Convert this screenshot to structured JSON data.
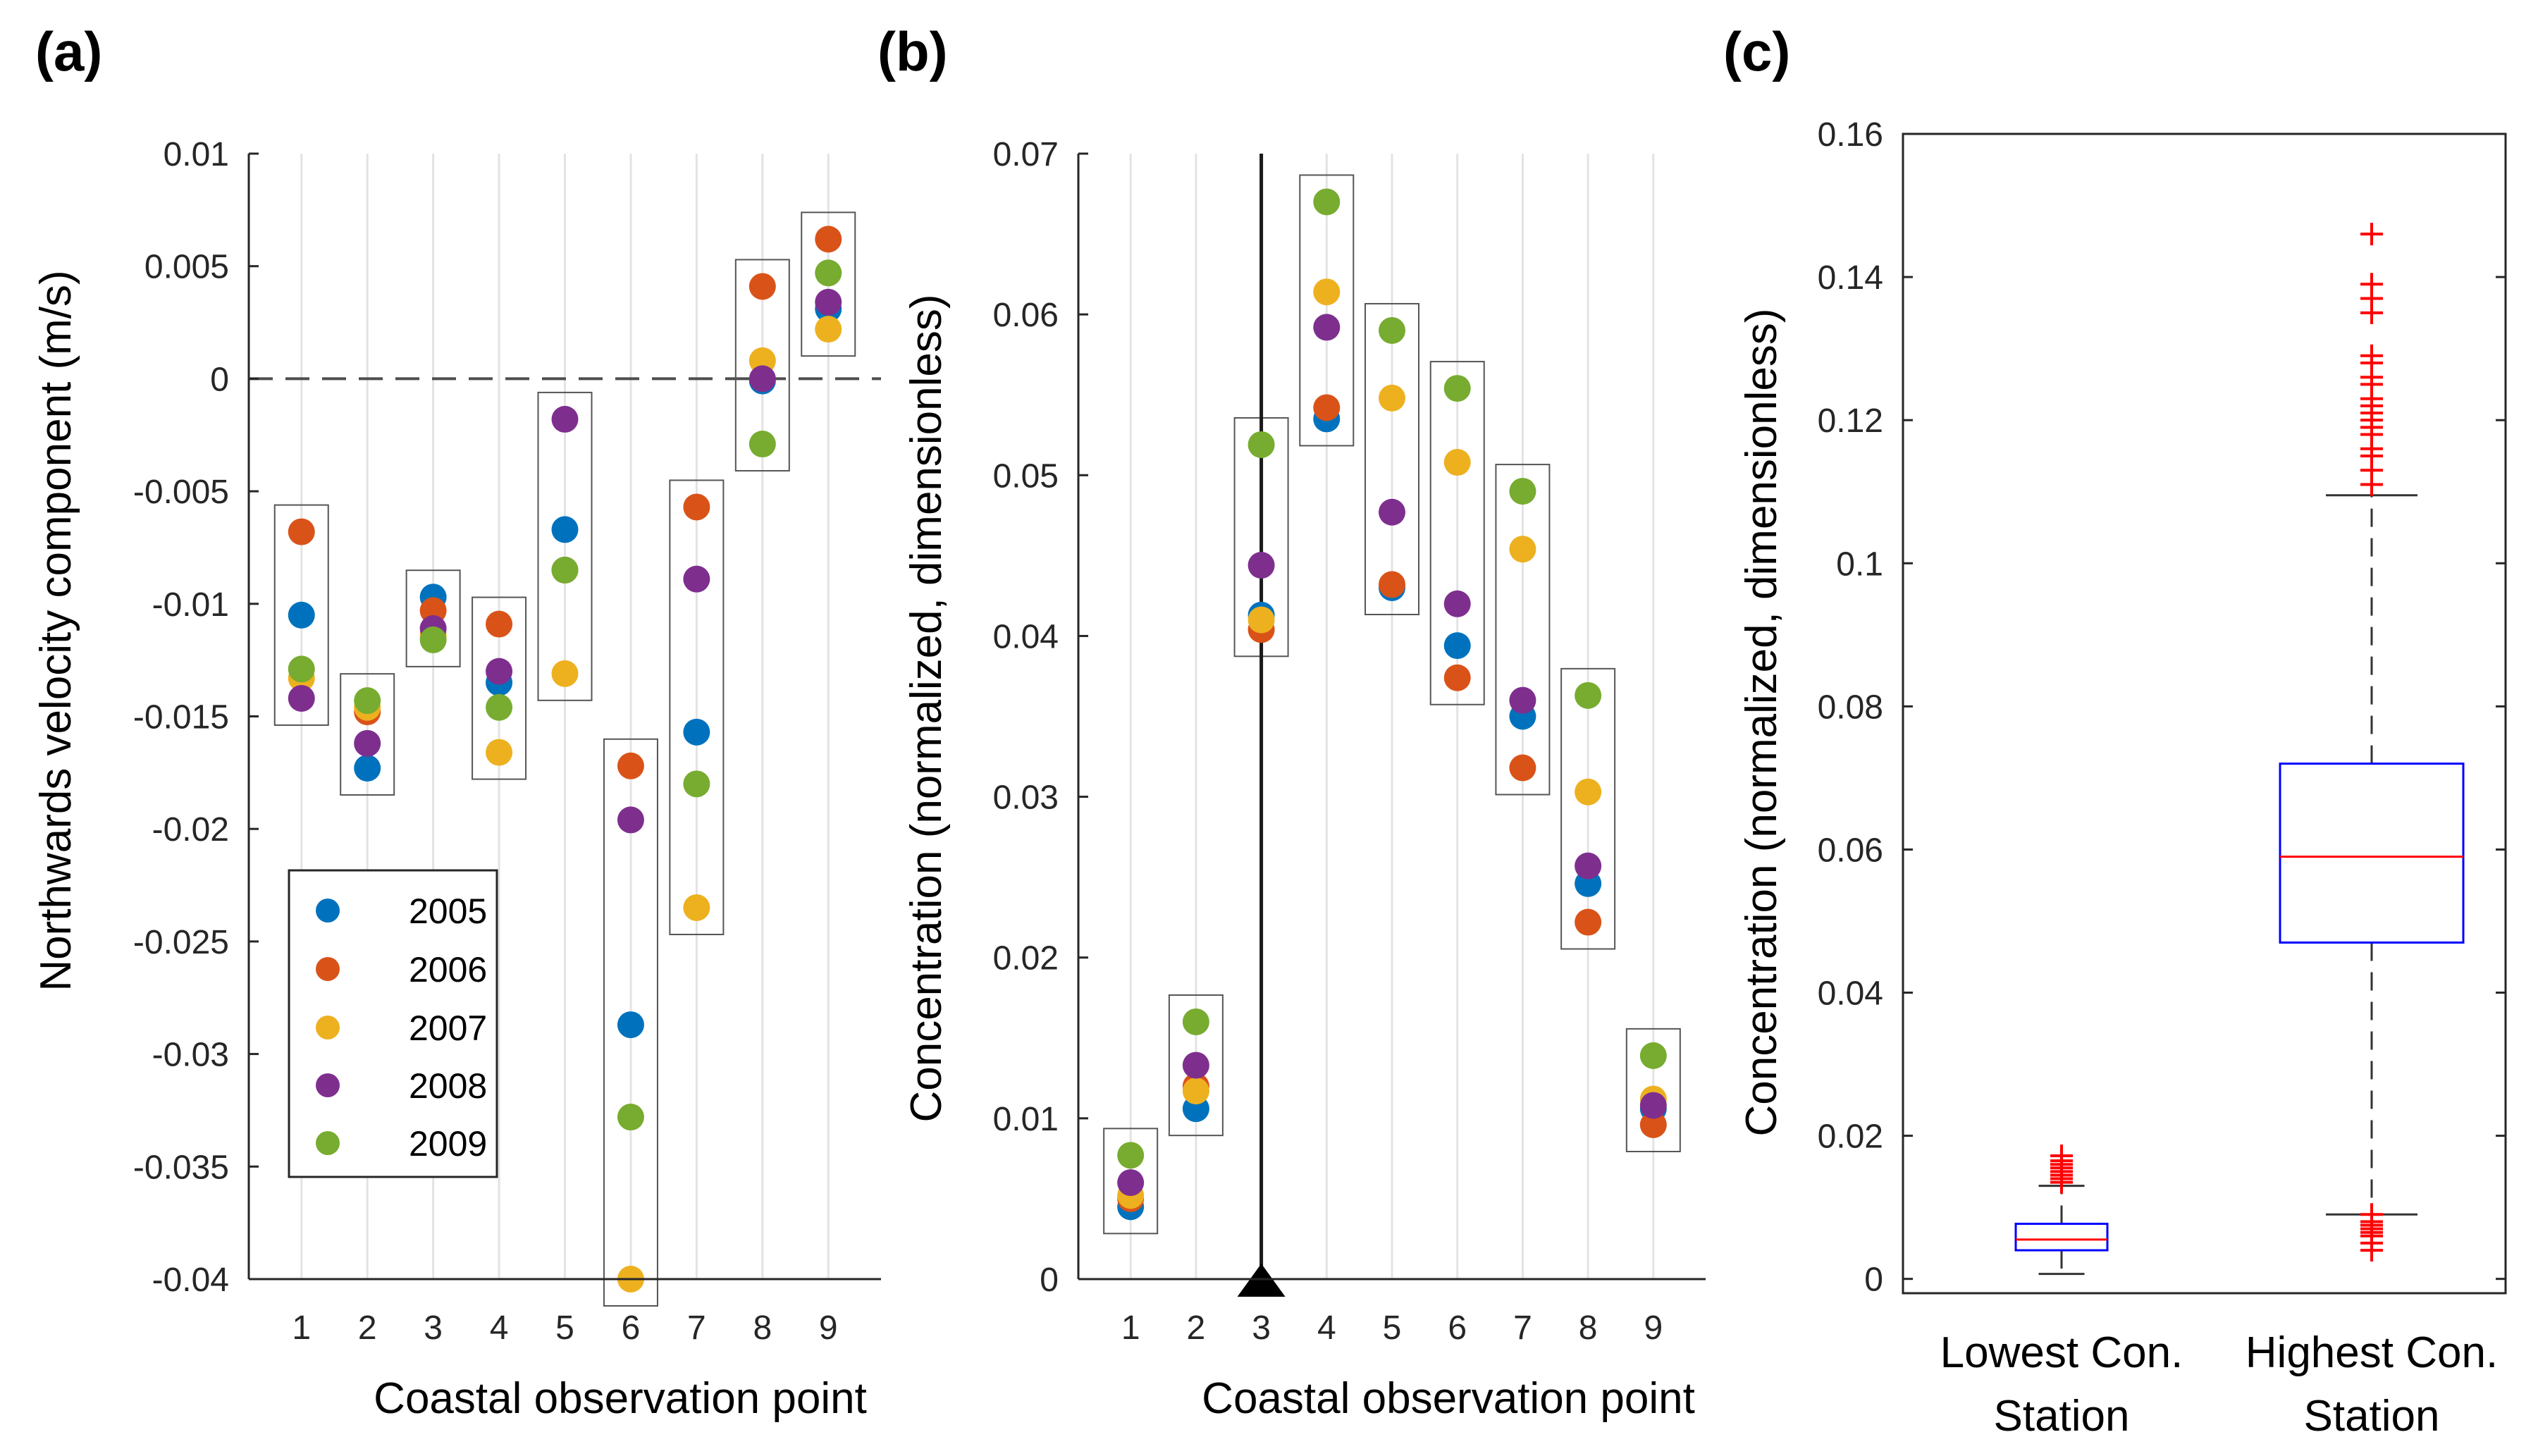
{
  "colors": {
    "2005": "#0072BD",
    "2006": "#D95319",
    "2007": "#EDB120",
    "2008": "#7E2F8E",
    "2009": "#77AC30",
    "box_outline": "#0000FF",
    "median": "#FF0000",
    "outlier": "#FF0000"
  },
  "chart_data": [
    {
      "panel_label": "(a)",
      "type": "scatter",
      "xlabel": "Coastal observation point",
      "ylabel": "Northwards velocity component (m/s)",
      "x": [
        1,
        2,
        3,
        4,
        5,
        6,
        7,
        8,
        9
      ],
      "xlim": [
        0.2,
        9.8
      ],
      "ylim": [
        -0.04,
        0.01
      ],
      "yticks": [
        0.01,
        0.005,
        0,
        -0.005,
        -0.01,
        -0.015,
        -0.02,
        -0.025,
        -0.03,
        -0.035,
        -0.04
      ],
      "ytick_labels": [
        "0.01",
        "0.005",
        "0",
        "-0.005",
        "-0.01",
        "-0.015",
        "-0.02",
        "-0.025",
        "-0.03",
        "-0.035",
        "-0.04"
      ],
      "reference_line": 0,
      "legend": [
        "2005",
        "2006",
        "2007",
        "2008",
        "2009"
      ],
      "series": [
        {
          "name": "2005",
          "values": [
            -0.0105,
            -0.0173,
            -0.0097,
            -0.0135,
            -0.0067,
            -0.0287,
            -0.0157,
            -0.0001,
            0.0031
          ]
        },
        {
          "name": "2006",
          "values": [
            -0.0068,
            -0.0148,
            -0.0103,
            -0.0109,
            -0.0085,
            -0.0172,
            -0.0057,
            0.0041,
            0.0062
          ]
        },
        {
          "name": "2007",
          "values": [
            -0.0133,
            -0.0146,
            -0.0114,
            -0.0166,
            -0.0131,
            -0.04,
            -0.0235,
            0.0008,
            0.0022
          ]
        },
        {
          "name": "2008",
          "values": [
            -0.0142,
            -0.0162,
            -0.0111,
            -0.013,
            -0.0018,
            -0.0196,
            -0.0089,
            0.0,
            0.0034
          ]
        },
        {
          "name": "2009",
          "values": [
            -0.0129,
            -0.0143,
            -0.0116,
            -0.0146,
            -0.0085,
            -0.0328,
            -0.018,
            -0.0029,
            0.0047
          ]
        }
      ]
    },
    {
      "panel_label": "(b)",
      "type": "scatter",
      "xlabel": "Coastal observation point",
      "ylabel": "Concentration (normalized, dimensionless)",
      "x": [
        1,
        2,
        3,
        4,
        5,
        6,
        7,
        8,
        9
      ],
      "xlim": [
        0.2,
        9.8
      ],
      "ylim": [
        0,
        0.07
      ],
      "yticks": [
        0,
        0.01,
        0.02,
        0.03,
        0.04,
        0.05,
        0.06,
        0.07
      ],
      "ytick_labels": [
        "0",
        "0.01",
        "0.02",
        "0.03",
        "0.04",
        "0.05",
        "0.06",
        "0.07"
      ],
      "marker_line_x": 3,
      "series": [
        {
          "name": "2005",
          "values": [
            0.0045,
            0.0106,
            0.0413,
            0.0535,
            0.043,
            0.0394,
            0.035,
            0.0246,
            0.0106
          ]
        },
        {
          "name": "2006",
          "values": [
            0.005,
            0.012,
            0.0404,
            0.0542,
            0.0432,
            0.0374,
            0.0318,
            0.0222,
            0.0096
          ]
        },
        {
          "name": "2007",
          "values": [
            0.0052,
            0.0117,
            0.041,
            0.0614,
            0.0548,
            0.0508,
            0.0454,
            0.0303,
            0.0112
          ]
        },
        {
          "name": "2008",
          "values": [
            0.006,
            0.0133,
            0.0444,
            0.0592,
            0.0477,
            0.042,
            0.036,
            0.0257,
            0.0108
          ]
        },
        {
          "name": "2009",
          "values": [
            0.0077,
            0.016,
            0.0519,
            0.067,
            0.059,
            0.0554,
            0.049,
            0.0363,
            0.0139
          ]
        }
      ]
    },
    {
      "panel_label": "(c)",
      "type": "box",
      "ylabel": "Concentration (normalized, dimensionless)",
      "ylim": [
        -0.002,
        0.16
      ],
      "yticks": [
        0,
        0.02,
        0.04,
        0.06,
        0.08,
        0.1,
        0.12,
        0.14,
        0.16
      ],
      "ytick_labels": [
        "0",
        "0.02",
        "0.04",
        "0.06",
        "0.08",
        "0.1",
        "0.12",
        "0.14",
        "0.16"
      ],
      "categories": [
        {
          "line1": "Lowest Con.",
          "line2": "Station"
        },
        {
          "line1": "Highest Con.",
          "line2": "Station"
        }
      ],
      "boxes": [
        {
          "whisker_low": 0.0007,
          "q1": 0.004,
          "median": 0.0055,
          "q3": 0.0077,
          "whisker_high": 0.013,
          "outliers": [
            0.0135,
            0.014,
            0.0145,
            0.015,
            0.0155,
            0.016,
            0.0165,
            0.0172
          ]
        },
        {
          "whisker_low": 0.009,
          "q1": 0.047,
          "median": 0.059,
          "q3": 0.072,
          "whisker_high": 0.1095,
          "outliers": [
            0.004,
            0.005,
            0.006,
            0.0065,
            0.007,
            0.0075,
            0.008,
            0.009,
            0.111,
            0.113,
            0.115,
            0.116,
            0.118,
            0.119,
            0.12,
            0.121,
            0.122,
            0.123,
            0.125,
            0.126,
            0.128,
            0.129,
            0.135,
            0.137,
            0.139,
            0.146
          ]
        }
      ]
    }
  ]
}
